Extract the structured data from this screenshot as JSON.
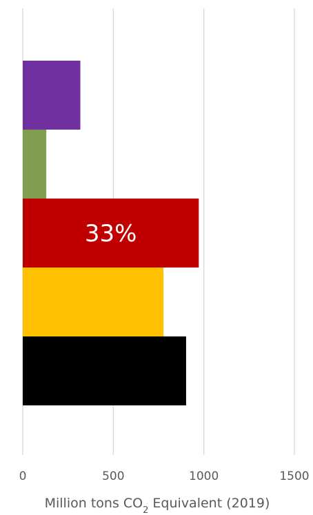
{
  "chart_data": {
    "type": "bar",
    "orientation": "horizontal",
    "title": "",
    "xlabel": "Million tons CO",
    "xlabel_sub": "2",
    "xlabel_suffix": " Equivalent (2019)",
    "ylabel": "",
    "xlim": [
      0,
      1500
    ],
    "xticks": [
      0,
      500,
      1000,
      1500
    ],
    "xtick_labels": [
      "0",
      "500",
      "1000",
      "1500"
    ],
    "grid": true,
    "legend": "none",
    "bars": [
      {
        "value": 318,
        "color": "#7030a0"
      },
      {
        "value": 130,
        "color": "#7f9f4f"
      },
      {
        "value": 972,
        "color": "#c00000",
        "label": "33%"
      },
      {
        "value": 777,
        "color": "#ffc000"
      },
      {
        "value": 902,
        "color": "#000000"
      }
    ]
  }
}
